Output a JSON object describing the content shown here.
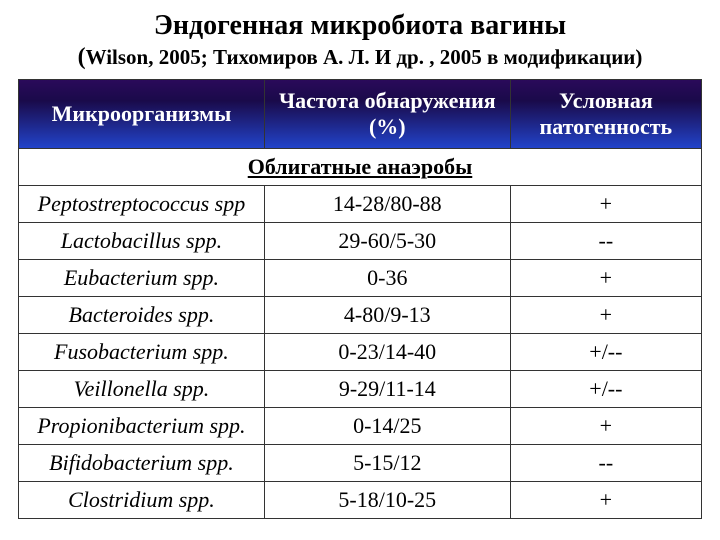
{
  "title": "Эндогенная микробиота вагины",
  "subtitle_prefix": "(",
  "subtitle_text": "Wilson, 2005; Тихомиров А. Л. И др. , 2005 в модификации)",
  "headers": {
    "organism": "Микроорганизмы",
    "frequency": "Частота обнаружения (%)",
    "pathogenicity": "Условная патогенность"
  },
  "section_label": "Облигатные анаэробы",
  "rows": [
    {
      "organism": "Peptostreptococcus spp",
      "frequency": "14-28/80-88",
      "pathogenicity": "+"
    },
    {
      "organism": "Lactobacillus spp.",
      "frequency": "29-60/5-30",
      "pathogenicity": "--"
    },
    {
      "organism": "Eubacterium spp.",
      "frequency": "0-36",
      "pathogenicity": "+"
    },
    {
      "organism": "Bacteroides spp.",
      "frequency": "4-80/9-13",
      "pathogenicity": "+"
    },
    {
      "organism": "Fusobacterium spp.",
      "frequency": "0-23/14-40",
      "pathogenicity": "+/--"
    },
    {
      "organism": "Veillonella spp.",
      "frequency": "9-29/11-14",
      "pathogenicity": "+/--"
    },
    {
      "organism": "Propionibacterium spp.",
      "frequency": "0-14/25",
      "pathogenicity": "+"
    },
    {
      "organism": "Bifidobacterium spp.",
      "frequency": "5-15/12",
      "pathogenicity": "--"
    },
    {
      "organism": "Clostridium spp.",
      "frequency": "5-18/10-25",
      "pathogenicity": "+"
    }
  ],
  "styling": {
    "header_gradient_top": "#2a0a5a",
    "header_gradient_bottom": "#2244cc",
    "header_text_color": "#ffffff",
    "body_text_color": "#000000",
    "border_color": "#333333",
    "background": "#ffffff",
    "title_fontsize": 28,
    "subtitle_fontsize": 21,
    "header_fontsize": 22,
    "cell_fontsize": 22
  }
}
